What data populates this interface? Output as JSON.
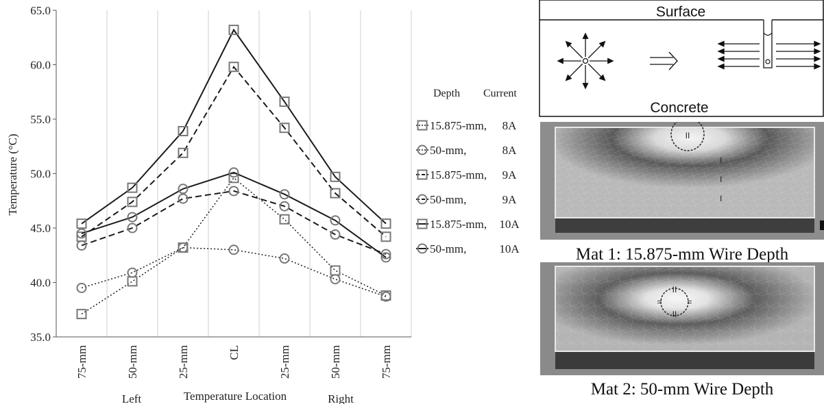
{
  "chart_data": {
    "type": "line",
    "categories": [
      "75-mm",
      "50-mm",
      "25-mm",
      "CL",
      "25-mm",
      "50-mm",
      "75-mm"
    ],
    "group_labels": [
      "Left",
      "Temperature Location",
      "Right"
    ],
    "ylabel": "Temperature (°C)",
    "ylim": [
      35.0,
      65.0
    ],
    "yticks": [
      "35.0",
      "40.0",
      "45.0",
      "50.0",
      "55.0",
      "60.0",
      "65.0"
    ],
    "grid": "vertical",
    "legend_position": "right",
    "legend_header": {
      "depth": "Depth",
      "current": "Current"
    },
    "series": [
      {
        "depth": "15.875-mm,",
        "current": "8A",
        "marker": "square",
        "dash": "dotted",
        "values": [
          37.1,
          40.1,
          43.2,
          49.6,
          45.8,
          41.1,
          38.8
        ]
      },
      {
        "depth": "50-mm,",
        "current": "8A",
        "marker": "circle",
        "dash": "dotted",
        "values": [
          39.5,
          40.9,
          43.2,
          43.0,
          42.2,
          40.3,
          38.7
        ]
      },
      {
        "depth": "15.875-mm,",
        "current": "9A",
        "marker": "square",
        "dash": "dashed",
        "values": [
          44.2,
          47.4,
          51.9,
          59.8,
          54.2,
          48.2,
          44.2
        ]
      },
      {
        "depth": "50-mm,",
        "current": "9A",
        "marker": "circle",
        "dash": "dashed",
        "values": [
          43.4,
          45.0,
          47.7,
          48.4,
          47.0,
          44.4,
          42.6
        ]
      },
      {
        "depth": "15.875-mm,",
        "current": "10A",
        "marker": "square",
        "dash": "solid",
        "values": [
          45.4,
          48.7,
          53.9,
          63.2,
          56.6,
          49.7,
          45.4
        ]
      },
      {
        "depth": "50-mm,",
        "current": "10A",
        "marker": "circle",
        "dash": "solid",
        "values": [
          44.5,
          46.0,
          48.6,
          50.1,
          48.1,
          45.7,
          42.3
        ]
      }
    ]
  },
  "diagram": {
    "surface_label": "Surface",
    "concrete_label": "Concrete"
  },
  "panels": [
    {
      "caption": "Mat 1: 15.875-mm Wire Depth",
      "marker_labels": [
        "I",
        "I",
        "I",
        "II",
        "II"
      ]
    },
    {
      "caption": "Mat 2: 50-mm Wire Depth",
      "marker_labels": [
        "II",
        "II",
        "=",
        "="
      ]
    }
  ],
  "colors": {
    "line": "#1a1a1a",
    "marker": "#777777",
    "grid": "#cfcfcf"
  }
}
